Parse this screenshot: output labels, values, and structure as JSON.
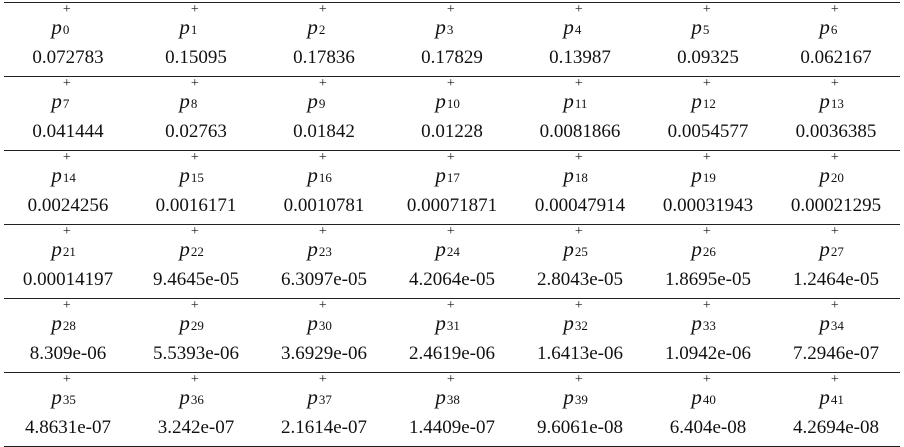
{
  "table": {
    "rows": [
      {
        "headers": [
          {
            "base": "p",
            "sup": "+",
            "sub": "0"
          },
          {
            "base": "p",
            "sup": "+",
            "sub": "1"
          },
          {
            "base": "p",
            "sup": "+",
            "sub": "2"
          },
          {
            "base": "p",
            "sup": "+",
            "sub": "3"
          },
          {
            "base": "p",
            "sup": "+",
            "sub": "4"
          },
          {
            "base": "p",
            "sup": "+",
            "sub": "5"
          },
          {
            "base": "p",
            "sup": "+",
            "sub": "6"
          }
        ],
        "values": [
          "0.072783",
          "0.15095",
          "0.17836",
          "0.17829",
          "0.13987",
          "0.09325",
          "0.062167"
        ]
      },
      {
        "headers": [
          {
            "base": "p",
            "sup": "+",
            "sub": "7"
          },
          {
            "base": "p",
            "sup": "+",
            "sub": "8"
          },
          {
            "base": "p",
            "sup": "+",
            "sub": "9"
          },
          {
            "base": "p",
            "sup": "+",
            "sub": "10"
          },
          {
            "base": "p",
            "sup": "+",
            "sub": "11"
          },
          {
            "base": "p",
            "sup": "+",
            "sub": "12"
          },
          {
            "base": "p",
            "sup": "+",
            "sub": "13"
          }
        ],
        "values": [
          "0.041444",
          "0.02763",
          "0.01842",
          "0.01228",
          "0.0081866",
          "0.0054577",
          "0.0036385"
        ]
      },
      {
        "headers": [
          {
            "base": "p",
            "sup": "+",
            "sub": "14"
          },
          {
            "base": "p",
            "sup": "+",
            "sub": "15"
          },
          {
            "base": "p",
            "sup": "+",
            "sub": "16"
          },
          {
            "base": "p",
            "sup": "+",
            "sub": "17"
          },
          {
            "base": "p",
            "sup": "+",
            "sub": "18"
          },
          {
            "base": "p",
            "sup": "+",
            "sub": "19"
          },
          {
            "base": "p",
            "sup": "+",
            "sub": "20"
          }
        ],
        "values": [
          "0.0024256",
          "0.0016171",
          "0.0010781",
          "0.00071871",
          "0.00047914",
          "0.00031943",
          "0.00021295"
        ]
      },
      {
        "headers": [
          {
            "base": "p",
            "sup": "+",
            "sub": "21"
          },
          {
            "base": "p",
            "sup": "+",
            "sub": "22"
          },
          {
            "base": "p",
            "sup": "+",
            "sub": "23"
          },
          {
            "base": "p",
            "sup": "+",
            "sub": "24"
          },
          {
            "base": "p",
            "sup": "+",
            "sub": "25"
          },
          {
            "base": "p",
            "sup": "+",
            "sub": "26"
          },
          {
            "base": "p",
            "sup": "+",
            "sub": "27"
          }
        ],
        "values": [
          "0.00014197",
          "9.4645e-05",
          "6.3097e-05",
          "4.2064e-05",
          "2.8043e-05",
          "1.8695e-05",
          "1.2464e-05"
        ]
      },
      {
        "headers": [
          {
            "base": "p",
            "sup": "+",
            "sub": "28"
          },
          {
            "base": "p",
            "sup": "+",
            "sub": "29"
          },
          {
            "base": "p",
            "sup": "+",
            "sub": "30"
          },
          {
            "base": "p",
            "sup": "+",
            "sub": "31"
          },
          {
            "base": "p",
            "sup": "+",
            "sub": "32"
          },
          {
            "base": "p",
            "sup": "+",
            "sub": "33"
          },
          {
            "base": "p",
            "sup": "+",
            "sub": "34"
          }
        ],
        "values": [
          "8.309e-06",
          "5.5393e-06",
          "3.6929e-06",
          "2.4619e-06",
          "1.6413e-06",
          "1.0942e-06",
          "7.2946e-07"
        ]
      },
      {
        "headers": [
          {
            "base": "p",
            "sup": "+",
            "sub": "35"
          },
          {
            "base": "p",
            "sup": "+",
            "sub": "36"
          },
          {
            "base": "p",
            "sup": "+",
            "sub": "37"
          },
          {
            "base": "p",
            "sup": "+",
            "sub": "38"
          },
          {
            "base": "p",
            "sup": "+",
            "sub": "39"
          },
          {
            "base": "p",
            "sup": "+",
            "sub": "40"
          },
          {
            "base": "p",
            "sup": "+",
            "sub": "41"
          }
        ],
        "values": [
          "4.8631e-07",
          "3.242e-07",
          "2.1614e-07",
          "1.4409e-07",
          "9.6061e-08",
          "6.404e-08",
          "4.2694e-08"
        ]
      }
    ]
  }
}
